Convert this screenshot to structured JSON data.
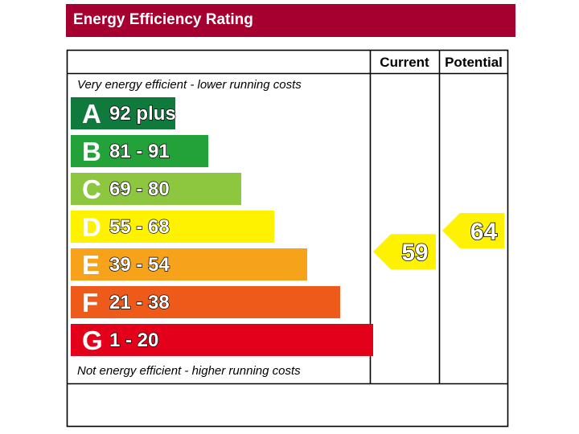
{
  "title": "Energy Efficiency Rating",
  "chart_data": {
    "type": "bar",
    "columns": {
      "current": "Current",
      "potential": "Potential"
    },
    "top_note": "Very energy efficient - lower running costs",
    "bottom_note": "Not energy efficient - higher running costs",
    "bands": [
      {
        "letter": "A",
        "range": "92 plus",
        "min": 92,
        "max": 100,
        "color": "#0f7a3c"
      },
      {
        "letter": "B",
        "range": "81 - 91",
        "min": 81,
        "max": 91,
        "color": "#23a23a"
      },
      {
        "letter": "C",
        "range": "69 - 80",
        "min": 69,
        "max": 80,
        "color": "#8dc63f"
      },
      {
        "letter": "D",
        "range": "55 - 68",
        "min": 55,
        "max": 68,
        "color": "#fff200"
      },
      {
        "letter": "E",
        "range": "39 - 54",
        "min": 39,
        "max": 54,
        "color": "#f7a21b"
      },
      {
        "letter": "F",
        "range": "21 - 38",
        "min": 21,
        "max": 38,
        "color": "#ed5a1a"
      },
      {
        "letter": "G",
        "range": "1 - 20",
        "min": 1,
        "max": 20,
        "color": "#e2001a"
      }
    ],
    "current": {
      "value": 59,
      "band": "D",
      "color": "#fff200"
    },
    "potential": {
      "value": 64,
      "band": "D",
      "color": "#fff200"
    }
  }
}
